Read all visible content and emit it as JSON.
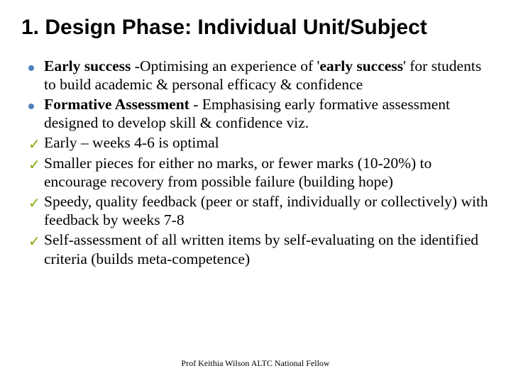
{
  "colors": {
    "background": "#ffffff",
    "text": "#000000",
    "bullet_dot": "#4f81bd",
    "check": "#7da800"
  },
  "title": {
    "text": "1.   Design Phase: Individual Unit/Subject",
    "font_family": "Arial",
    "font_weight": 700,
    "font_size_pt": 24
  },
  "body": {
    "font_family": "Georgia",
    "font_size_pt": 17,
    "line_height": 1.22,
    "items": [
      {
        "marker": "dot",
        "runs": [
          {
            "text": "Early success ",
            "bold": true
          },
          {
            "text": "-Optimising an experience of '",
            "bold": false
          },
          {
            "text": "early success",
            "bold": true
          },
          {
            "text": "' for students to build academic & personal efficacy & confidence",
            "bold": false
          }
        ]
      },
      {
        "marker": "dot",
        "runs": [
          {
            "text": "Formative Assessment",
            "bold": true
          },
          {
            "text": " - Emphasising early formative assessment designed to develop skill & confidence viz.",
            "bold": false
          }
        ]
      },
      {
        "marker": "check",
        "runs": [
          {
            "text": "Early – weeks  4-6 is optimal",
            "bold": false
          }
        ]
      },
      {
        "marker": "check",
        "runs": [
          {
            "text": "Smaller pieces for either no marks, or fewer marks (10-20%) to encourage recovery from possible failure (building hope)",
            "bold": false
          }
        ]
      },
      {
        "marker": "check",
        "runs": [
          {
            "text": "Speedy, quality feedback (peer or staff, individually or collectively) with feedback by weeks  7-8",
            "bold": false
          }
        ]
      },
      {
        "marker": "check",
        "runs": [
          {
            "text": "Self-assessment of all written items by self-evaluating on the identified criteria (builds meta-competence)",
            "bold": false
          }
        ]
      }
    ]
  },
  "footer": {
    "text": "Prof Keithia Wilson ALTC National Fellow",
    "font_size_pt": 9
  }
}
